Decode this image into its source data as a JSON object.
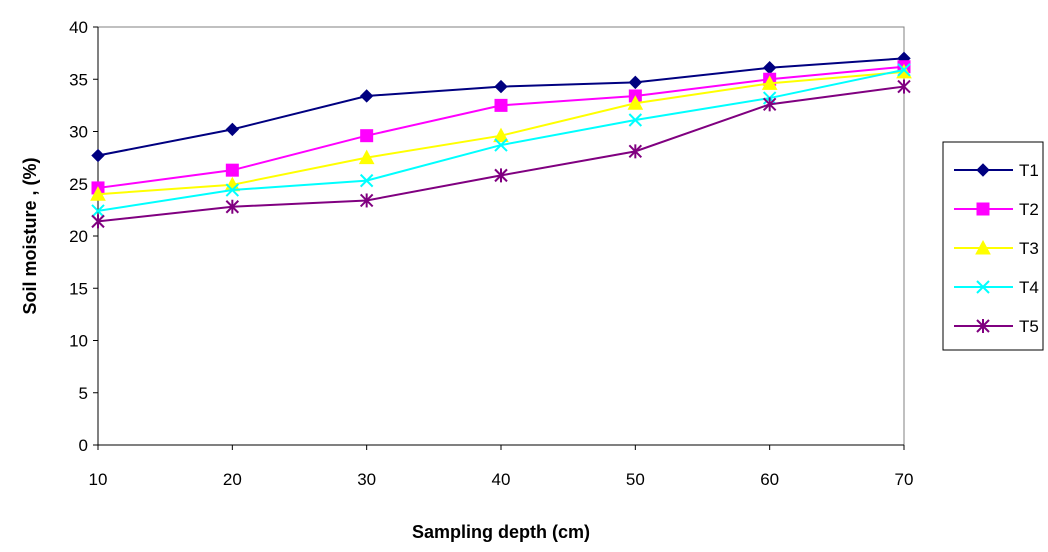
{
  "chart_data": {
    "type": "line",
    "title": "",
    "xlabel": "Sampling depth (cm)",
    "ylabel": "Soil moisture , (%)",
    "x": [
      10,
      20,
      30,
      40,
      50,
      60,
      70
    ],
    "x_tick_labels": [
      "10",
      "20",
      "30",
      "40",
      "50",
      "60",
      "70"
    ],
    "ylim": [
      0,
      40
    ],
    "y_ticks": [
      0,
      5,
      10,
      15,
      20,
      25,
      30,
      35,
      40
    ],
    "y_tick_labels": [
      "0",
      "5",
      "10",
      "15",
      "20",
      "25",
      "30",
      "35",
      "40"
    ],
    "grid": false,
    "legend_position": "right",
    "series": [
      {
        "name": "T1",
        "color": "#000080",
        "marker": "diamond",
        "values": [
          27.7,
          30.2,
          33.4,
          34.3,
          34.7,
          36.1,
          37.0
        ]
      },
      {
        "name": "T2",
        "color": "#FF00FF",
        "marker": "square",
        "values": [
          24.6,
          26.3,
          29.6,
          32.5,
          33.4,
          35.0,
          36.2
        ]
      },
      {
        "name": "T3",
        "color": "#FFFF00",
        "marker": "triangle",
        "values": [
          24.0,
          24.9,
          27.5,
          29.6,
          32.7,
          34.6,
          35.7
        ]
      },
      {
        "name": "T4",
        "color": "#00FFFF",
        "marker": "x",
        "values": [
          22.4,
          24.4,
          25.3,
          28.7,
          31.1,
          33.2,
          35.9
        ]
      },
      {
        "name": "T5",
        "color": "#800080",
        "marker": "asterisk",
        "values": [
          21.4,
          22.8,
          23.4,
          25.8,
          28.1,
          32.6,
          34.3
        ]
      }
    ]
  }
}
